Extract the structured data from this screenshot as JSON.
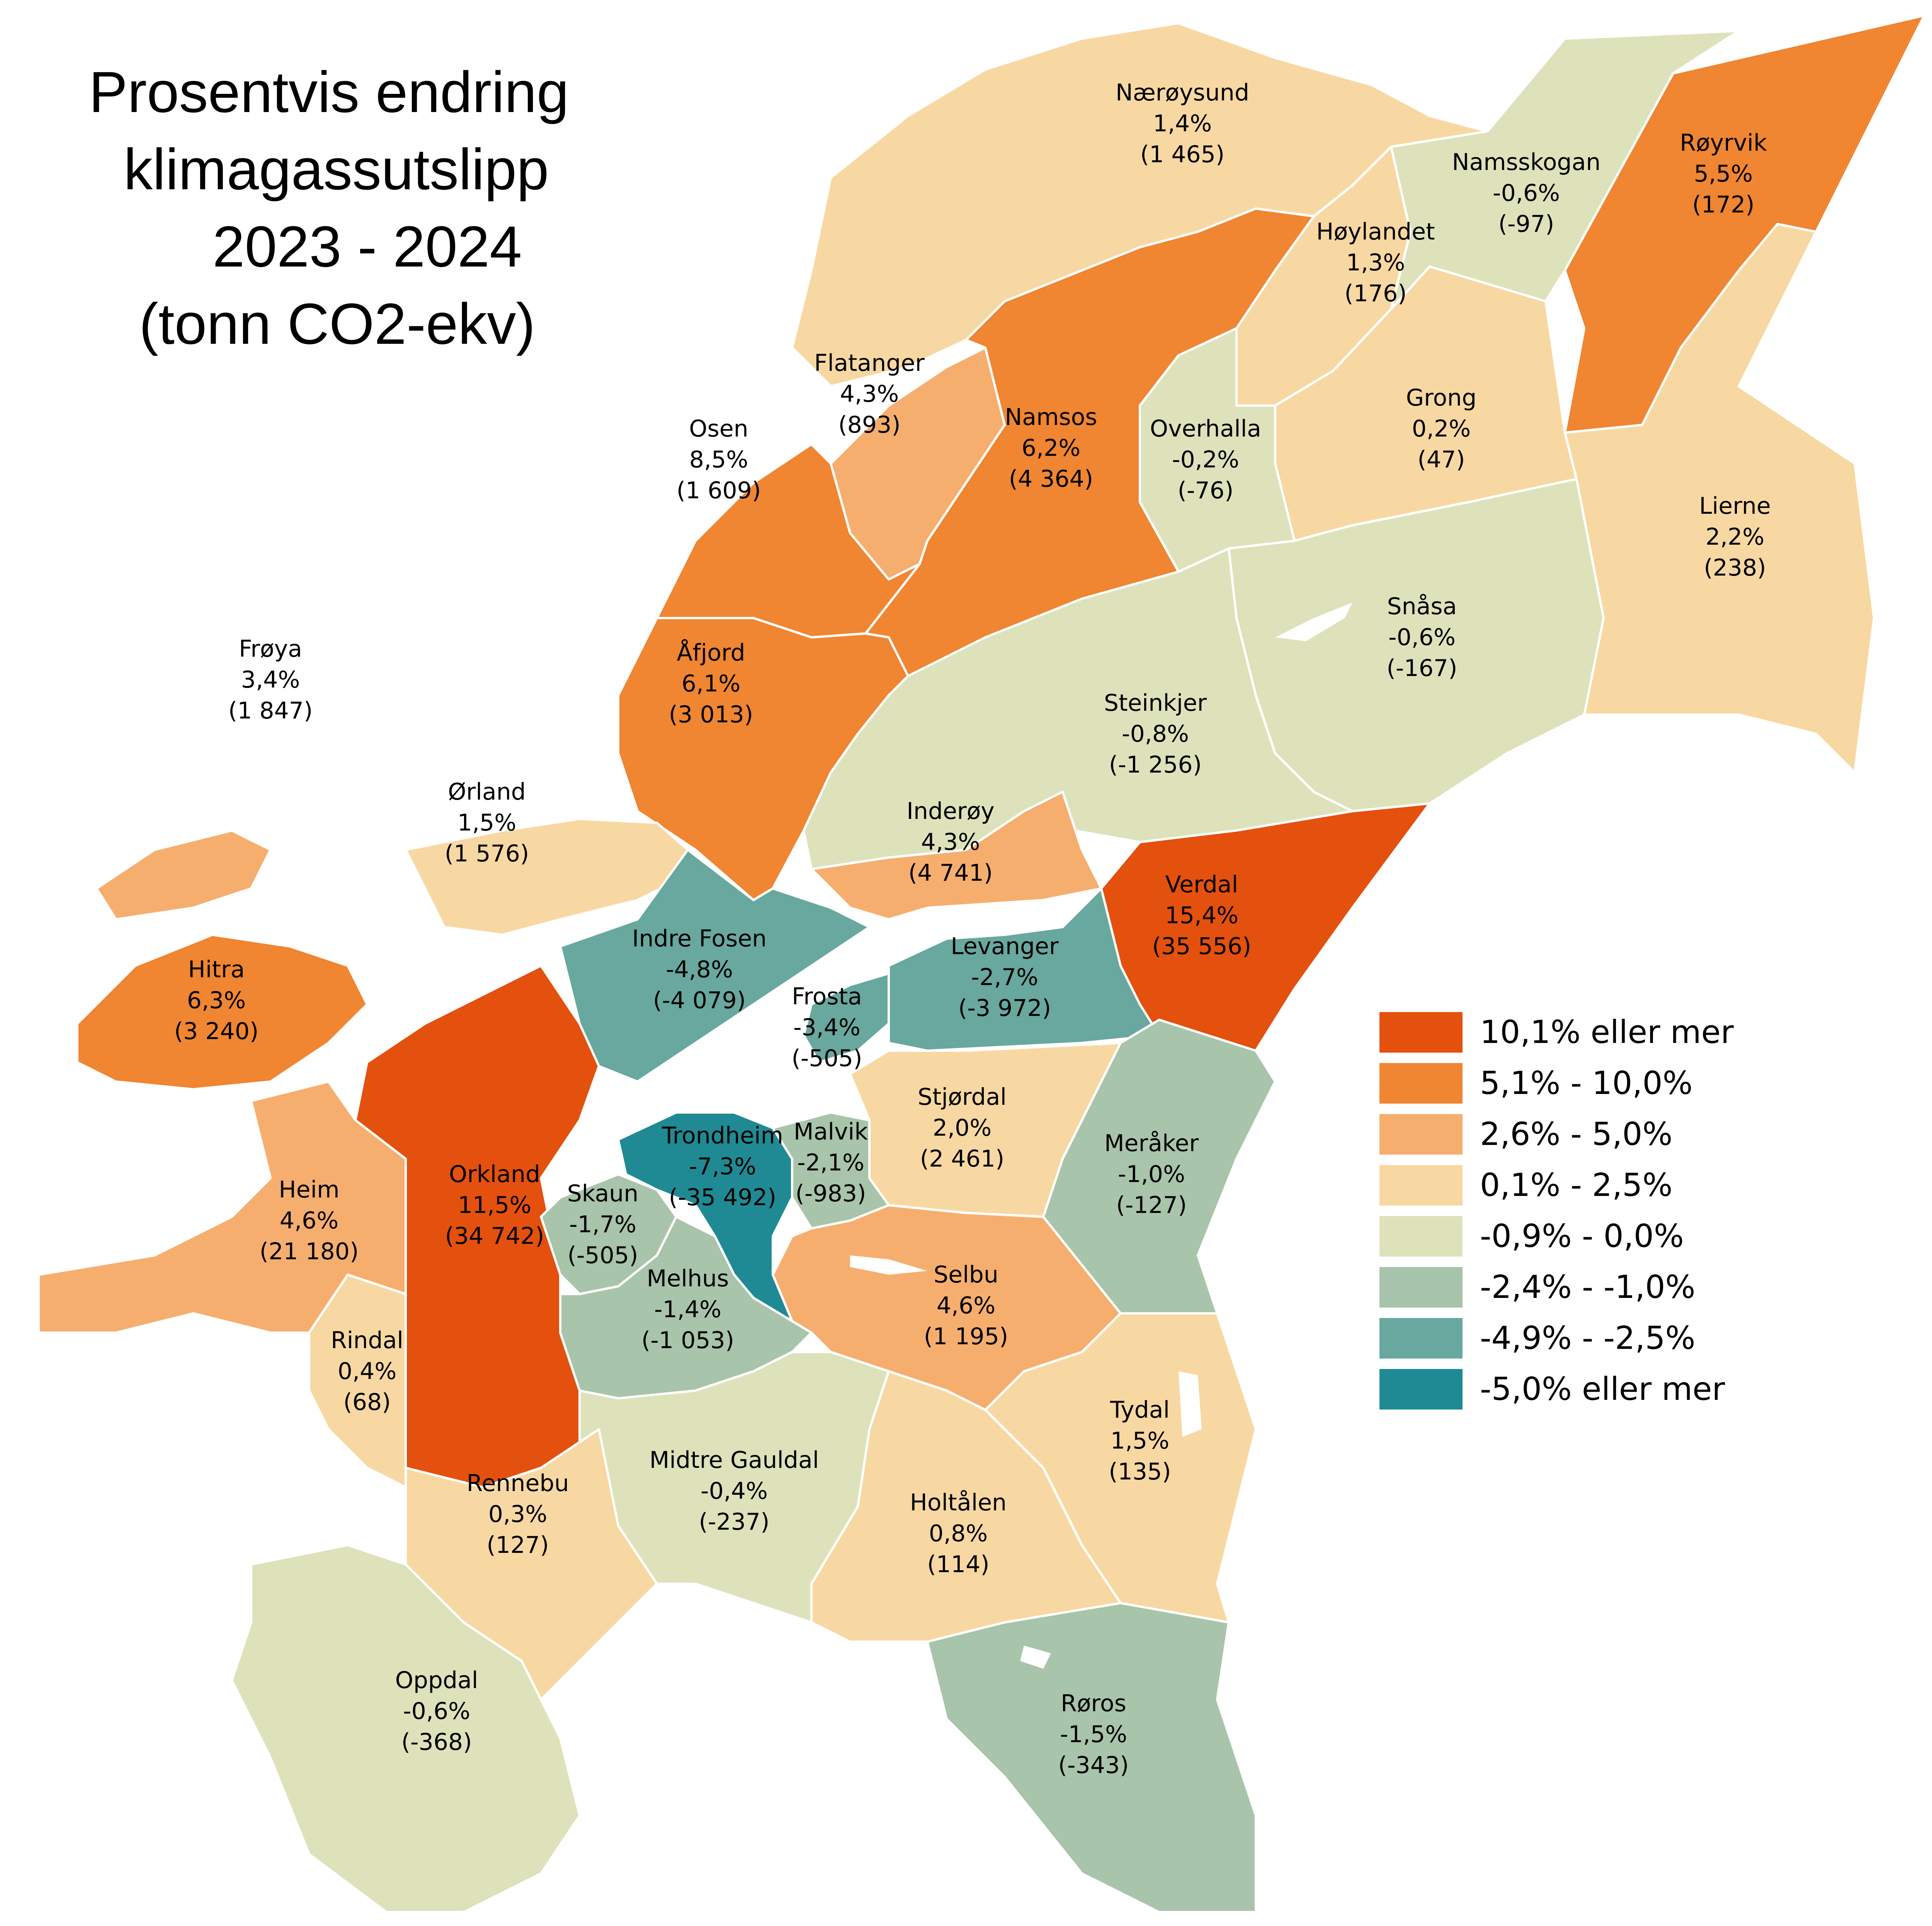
{
  "title": {
    "lines": [
      "Prosentvis endring",
      "klimagassutslipp",
      "2023 - 2024",
      "(tonn CO2-ekv)"
    ]
  },
  "legend": {
    "items": [
      {
        "label": "10,1%  eller mer",
        "color": "#e4500e"
      },
      {
        "label": "5,1% - 10,0%",
        "color": "#f08532"
      },
      {
        "label": "2,6% - 5,0%",
        "color": "#f6ae6f"
      },
      {
        "label": "0,1% - 2,5%",
        "color": "#f8d8a2"
      },
      {
        "label": "-0,9% - 0,0%",
        "color": "#dde2bb"
      },
      {
        "label": "-2,4% - -1,0%",
        "color": "#a8c4aa"
      },
      {
        "label": "-4,9% - -2,5%",
        "color": "#68a89e"
      },
      {
        "label": "-5,0% eller mer",
        "color": "#1f8a93"
      }
    ]
  },
  "municipalities": [
    {
      "id": "naeroysund",
      "name": "Nærøysund",
      "pct": "1,4%",
      "tonn": "(1 465)",
      "class": 3
    },
    {
      "id": "royrvik",
      "name": "Røyrvik",
      "pct": "5,5%",
      "tonn": "(172)",
      "class": 1
    },
    {
      "id": "namsskogan",
      "name": "Namsskogan",
      "pct": "-0,6%",
      "tonn": "(-97)",
      "class": 4
    },
    {
      "id": "hoylandet",
      "name": "Høylandet",
      "pct": "1,3%",
      "tonn": "(176)",
      "class": 3
    },
    {
      "id": "grong",
      "name": "Grong",
      "pct": "0,2%",
      "tonn": "(47)",
      "class": 3
    },
    {
      "id": "flatanger",
      "name": "Flatanger",
      "pct": "4,3%",
      "tonn": "(893)",
      "class": 2
    },
    {
      "id": "namsos",
      "name": "Namsos",
      "pct": "6,2%",
      "tonn": "(4 364)",
      "class": 1
    },
    {
      "id": "overhalla",
      "name": "Overhalla",
      "pct": "-0,2%",
      "tonn": "(-76)",
      "class": 4
    },
    {
      "id": "osen",
      "name": "Osen",
      "pct": "8,5%",
      "tonn": "(1 609)",
      "class": 1
    },
    {
      "id": "lierne",
      "name": "Lierne",
      "pct": "2,2%",
      "tonn": "(238)",
      "class": 3
    },
    {
      "id": "snasa",
      "name": "Snåsa",
      "pct": "-0,6%",
      "tonn": "(-167)",
      "class": 4
    },
    {
      "id": "froya",
      "name": "Frøya",
      "pct": "3,4%",
      "tonn": "(1 847)",
      "class": 2
    },
    {
      "id": "afjord",
      "name": "Åfjord",
      "pct": "6,1%",
      "tonn": "(3 013)",
      "class": 1
    },
    {
      "id": "steinkjer",
      "name": "Steinkjer",
      "pct": "-0,8%",
      "tonn": "(-1 256)",
      "class": 4
    },
    {
      "id": "orland",
      "name": "Ørland",
      "pct": "1,5%",
      "tonn": "(1 576)",
      "class": 3
    },
    {
      "id": "inderoy",
      "name": "Inderøy",
      "pct": "4,3%",
      "tonn": "(4 741)",
      "class": 2
    },
    {
      "id": "verdal",
      "name": "Verdal",
      "pct": "15,4%",
      "tonn": "(35 556)",
      "class": 0
    },
    {
      "id": "indrefosen",
      "name": "Indre Fosen",
      "pct": "-4,8%",
      "tonn": "(-4 079)",
      "class": 6
    },
    {
      "id": "levanger",
      "name": "Levanger",
      "pct": "-2,7%",
      "tonn": "(-3 972)",
      "class": 6
    },
    {
      "id": "hitra",
      "name": "Hitra",
      "pct": "6,3%",
      "tonn": "(3 240)",
      "class": 1
    },
    {
      "id": "frosta",
      "name": "Frosta",
      "pct": "-3,4%",
      "tonn": "(-505)",
      "class": 6
    },
    {
      "id": "stjordal",
      "name": "Stjørdal",
      "pct": "2,0%",
      "tonn": "(2 461)",
      "class": 3
    },
    {
      "id": "trondheim",
      "name": "Trondheim",
      "pct": "-7,3%",
      "tonn": "(-35 492)",
      "class": 7
    },
    {
      "id": "malvik",
      "name": "Malvik",
      "pct": "-2,1%",
      "tonn": "(-983)",
      "class": 5
    },
    {
      "id": "meraker",
      "name": "Meråker",
      "pct": "-1,0%",
      "tonn": "(-127)",
      "class": 5
    },
    {
      "id": "orkland",
      "name": "Orkland",
      "pct": "11,5%",
      "tonn": "(34 742)",
      "class": 0
    },
    {
      "id": "heim",
      "name": "Heim",
      "pct": "4,6%",
      "tonn": "(21 180)",
      "class": 2
    },
    {
      "id": "skaun",
      "name": "Skaun",
      "pct": "-1,7%",
      "tonn": "(-505)",
      "class": 5
    },
    {
      "id": "melhus",
      "name": "Melhus",
      "pct": "-1,4%",
      "tonn": "(-1 053)",
      "class": 5
    },
    {
      "id": "selbu",
      "name": "Selbu",
      "pct": "4,6%",
      "tonn": "(1 195)",
      "class": 2
    },
    {
      "id": "rindal",
      "name": "Rindal",
      "pct": "0,4%",
      "tonn": "(68)",
      "class": 3
    },
    {
      "id": "tydal",
      "name": "Tydal",
      "pct": "1,5%",
      "tonn": "(135)",
      "class": 3
    },
    {
      "id": "midtregauldal",
      "name": "Midtre Gauldal",
      "pct": "-0,4%",
      "tonn": "(-237)",
      "class": 4
    },
    {
      "id": "rennebu",
      "name": "Rennebu",
      "pct": "0,3%",
      "tonn": "(127)",
      "class": 3
    },
    {
      "id": "holtalen",
      "name": "Holtålen",
      "pct": "0,8%",
      "tonn": "(114)",
      "class": 3
    },
    {
      "id": "oppdal",
      "name": "Oppdal",
      "pct": "-0,6%",
      "tonn": "(-368)",
      "class": 4
    },
    {
      "id": "roros",
      "name": "Røros",
      "pct": "-1,5%",
      "tonn": "(-343)",
      "class": 5
    }
  ]
}
